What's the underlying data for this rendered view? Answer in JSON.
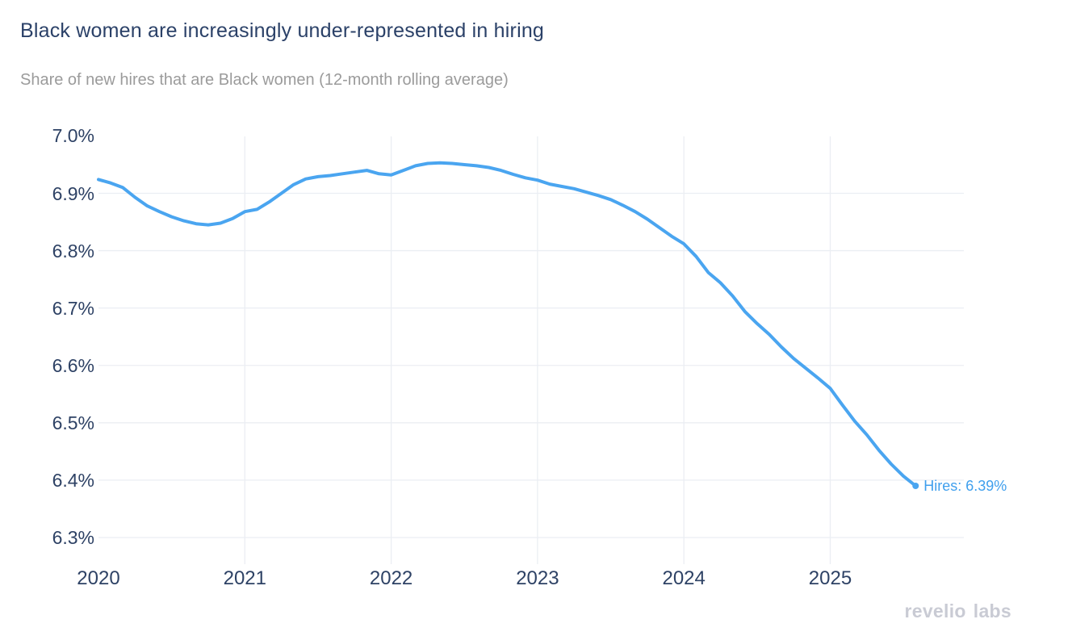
{
  "header": {
    "title": "Black women are increasingly under-represented in hiring",
    "subtitle": "Share of new hires that are Black women (12-month rolling average)"
  },
  "annotation": {
    "label": "Hires: 6.39%"
  },
  "brand": {
    "word1": "revelio",
    "word2": "labs"
  },
  "colors": {
    "line": "#4aa5f0",
    "grid": "#ebeef3",
    "title": "#2b4168",
    "tick": "#2e4265",
    "subtitle": "#9b9b9b",
    "annotation": "#3f9fed",
    "brand": "#c9cbd4"
  },
  "chart_data": {
    "type": "line",
    "title": "Black women are increasingly under-represented in hiring",
    "subtitle": "Share of new hires that are Black women (12-month rolling average)",
    "xlabel": "",
    "ylabel": "",
    "grid": true,
    "legend": "none",
    "x_ticks": [
      "2020",
      "2021",
      "2022",
      "2023",
      "2024",
      "2025"
    ],
    "y_ticks": [
      "7.0%",
      "6.9%",
      "6.8%",
      "6.7%",
      "6.6%",
      "6.5%",
      "6.4%",
      "6.3%"
    ],
    "ylim": [
      6.3,
      7.0
    ],
    "xlim_years": [
      2020.0,
      2025.92
    ],
    "last_point_label": "Hires: 6.39%",
    "series": [
      {
        "name": "Hires",
        "unit": "%",
        "x": [
          "2020-01",
          "2020-02",
          "2020-03",
          "2020-04",
          "2020-05",
          "2020-06",
          "2020-07",
          "2020-08",
          "2020-09",
          "2020-10",
          "2020-11",
          "2020-12",
          "2021-01",
          "2021-02",
          "2021-03",
          "2021-04",
          "2021-05",
          "2021-06",
          "2021-07",
          "2021-08",
          "2021-09",
          "2021-10",
          "2021-11",
          "2021-12",
          "2022-01",
          "2022-02",
          "2022-03",
          "2022-04",
          "2022-05",
          "2022-06",
          "2022-07",
          "2022-08",
          "2022-09",
          "2022-10",
          "2022-11",
          "2022-12",
          "2023-01",
          "2023-02",
          "2023-03",
          "2023-04",
          "2023-05",
          "2023-06",
          "2023-07",
          "2023-08",
          "2023-09",
          "2023-10",
          "2023-11",
          "2023-12",
          "2024-01",
          "2024-02",
          "2024-03",
          "2024-04",
          "2024-05",
          "2024-06",
          "2024-07",
          "2024-08",
          "2024-09",
          "2024-10",
          "2024-11",
          "2024-12",
          "2025-01",
          "2025-02",
          "2025-03",
          "2025-04",
          "2025-05",
          "2025-06",
          "2025-07",
          "2025-08"
        ],
        "values": [
          6.924,
          6.918,
          6.91,
          6.893,
          6.878,
          6.868,
          6.859,
          6.852,
          6.847,
          6.845,
          6.848,
          6.856,
          6.868,
          6.872,
          6.885,
          6.9,
          6.915,
          6.925,
          6.929,
          6.931,
          6.934,
          6.937,
          6.94,
          6.934,
          6.932,
          6.94,
          6.948,
          6.952,
          6.953,
          6.952,
          6.95,
          6.948,
          6.945,
          6.94,
          6.933,
          6.927,
          6.923,
          6.916,
          6.912,
          6.908,
          6.902,
          6.896,
          6.889,
          6.879,
          6.868,
          6.855,
          6.84,
          6.825,
          6.812,
          6.79,
          6.762,
          6.744,
          6.721,
          6.694,
          6.673,
          6.654,
          6.632,
          6.612,
          6.595,
          6.578,
          6.56,
          6.531,
          6.503,
          6.479,
          6.452,
          6.428,
          6.407,
          6.39
        ]
      }
    ]
  }
}
